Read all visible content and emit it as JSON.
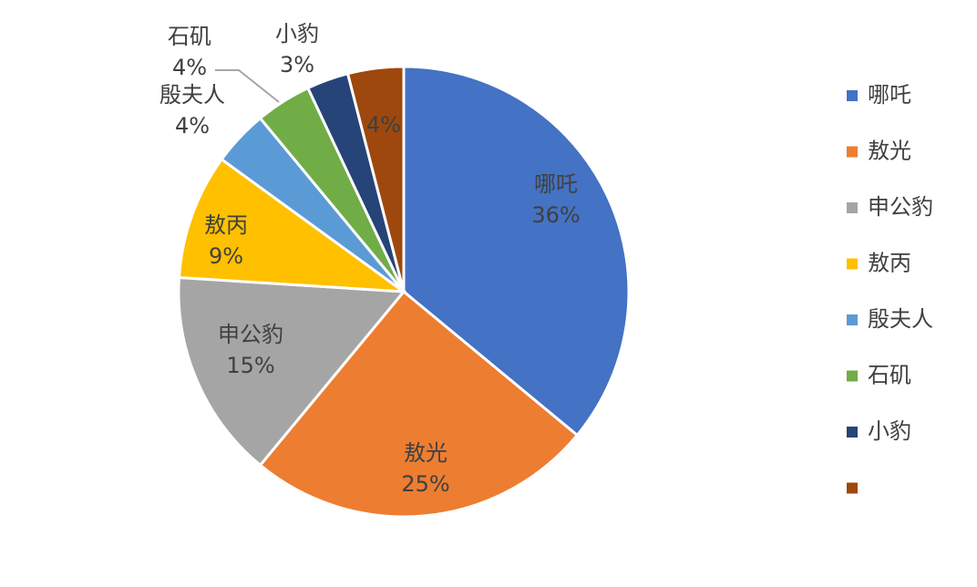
{
  "chart_data": {
    "type": "pie",
    "categories": [
      "哪吒",
      "敖光",
      "申公豹",
      "敖丙",
      "殷夫人",
      "石矶",
      "小豹",
      null
    ],
    "values": [
      36,
      25,
      15,
      9,
      4,
      4,
      3,
      4
    ],
    "value_labels": [
      "36%",
      "25%",
      "15%",
      "9%",
      "4%",
      "4%",
      "3%",
      "4%"
    ],
    "colors": [
      "#4472c4",
      "#ed7d31",
      "#a5a5a5",
      "#ffc000",
      "#5b9bd5",
      "#70ad47",
      "#264478",
      "#9e480e"
    ],
    "legend": "right"
  }
}
